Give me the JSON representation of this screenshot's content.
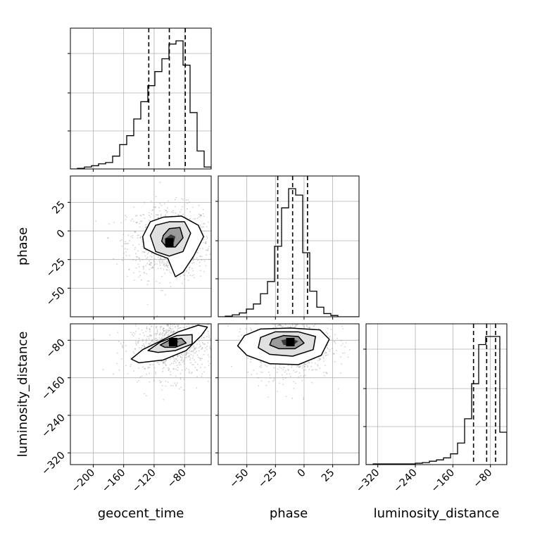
{
  "chart_data": {
    "type": "corner",
    "parameters": [
      "geocent_time",
      "phase",
      "luminosity_distance"
    ],
    "ranges": {
      "geocent_time": [
        -230,
        -45
      ],
      "phase": [
        -75,
        48
      ],
      "luminosity_distance": [
        -345,
        -45
      ]
    },
    "ticks": {
      "geocent_time": [
        -200,
        -160,
        -120,
        -80
      ],
      "phase": [
        -50,
        -25,
        0,
        25
      ],
      "luminosity_distance": [
        -320,
        -240,
        -160,
        -80
      ]
    },
    "tick_labels": {
      "geocent_time": [
        "−200",
        "−160",
        "−120",
        "−80"
      ],
      "phase": [
        "−50",
        "−25",
        "0",
        "25"
      ],
      "luminosity_distance": [
        "−320",
        "−240",
        "−160",
        "−80"
      ]
    },
    "grid": true,
    "histograms": {
      "geocent_time": {
        "bin_edges": [
          -230,
          -220.75,
          -211.5,
          -202.25,
          -193,
          -183.75,
          -174.5,
          -165.25,
          -156,
          -146.75,
          -137.5,
          -128.25,
          -119,
          -109.75,
          -100.5,
          -91.25,
          -82,
          -72.75,
          -63.5,
          -54.25,
          -45
        ],
        "counts": [
          0,
          1,
          3,
          5,
          8,
          10,
          20,
          38,
          52,
          78,
          105,
          130,
          152,
          172,
          195,
          200,
          162,
          88,
          28,
          3
        ],
        "quantiles": [
          -127,
          -100,
          -79
        ]
      },
      "phase": {
        "bin_edges": [
          -75,
          -68.85,
          -62.7,
          -56.55,
          -50.4,
          -44.25,
          -38.1,
          -31.95,
          -25.8,
          -19.65,
          -13.5,
          -7.35,
          -1.2,
          4.95,
          11.1,
          17.25,
          23.4,
          29.55,
          35.7,
          41.85,
          48
        ],
        "counts": [
          0,
          1,
          3,
          6,
          12,
          20,
          36,
          55,
          110,
          170,
          200,
          190,
          100,
          40,
          15,
          5,
          2,
          0,
          0,
          0
        ],
        "quantiles": [
          -23,
          -10,
          3
        ]
      },
      "luminosity_distance": {
        "bin_edges": [
          -345,
          -330,
          -315,
          -300,
          -285,
          -270,
          -255,
          -240,
          -225,
          -210,
          -195,
          -180,
          -165,
          -150,
          -135,
          -120,
          -105,
          -90,
          -75,
          -60,
          -45
        ],
        "counts": [
          0,
          1,
          1,
          1,
          1,
          1,
          1,
          2,
          3,
          5,
          7,
          10,
          16,
          32,
          68,
          120,
          178,
          190,
          190,
          48
        ],
        "quantiles": [
          -116,
          -88,
          -69
        ]
      }
    },
    "joint_2d": [
      {
        "x": "geocent_time",
        "y": "phase",
        "center": [
          -100,
          -10
        ],
        "contours": [
          [
            [
              -135,
              -5
            ],
            [
              -125,
              8
            ],
            [
              -108,
              12
            ],
            [
              -84,
              13
            ],
            [
              -62,
              5
            ],
            [
              -55,
              -5
            ],
            [
              -68,
              -22
            ],
            [
              -82,
              -36
            ],
            [
              -92,
              -40
            ],
            [
              -102,
              -24
            ],
            [
              -118,
              -20
            ],
            [
              -133,
              -15
            ]
          ],
          [
            [
              -125,
              -4
            ],
            [
              -118,
              5
            ],
            [
              -100,
              8
            ],
            [
              -80,
              8
            ],
            [
              -72,
              -2
            ],
            [
              -82,
              -18
            ],
            [
              -100,
              -22
            ],
            [
              -118,
              -18
            ]
          ],
          [
            [
              -108,
              -4
            ],
            [
              -100,
              2
            ],
            [
              -86,
              3
            ],
            [
              -82,
              -6
            ],
            [
              -92,
              -14
            ],
            [
              -104,
              -14
            ],
            [
              -110,
              -9
            ]
          ],
          [
            [
              -104,
              -6
            ],
            [
              -98,
              -3
            ],
            [
              -92,
              -5
            ],
            [
              -94,
              -10
            ],
            [
              -102,
              -10
            ]
          ]
        ]
      },
      {
        "x": "geocent_time",
        "y": "luminosity_distance",
        "center": [
          -95,
          -84
        ],
        "contours": [
          [
            [
              -150,
              -120
            ],
            [
              -135,
              -100
            ],
            [
              -112,
              -82
            ],
            [
              -88,
              -62
            ],
            [
              -62,
              -48
            ],
            [
              -50,
              -52
            ],
            [
              -58,
              -70
            ],
            [
              -78,
              -102
            ],
            [
              -108,
              -122
            ],
            [
              -140,
              -128
            ]
          ],
          [
            [
              -128,
              -102
            ],
            [
              -112,
              -84
            ],
            [
              -90,
              -70
            ],
            [
              -70,
              -68
            ],
            [
              -70,
              -88
            ],
            [
              -92,
              -102
            ],
            [
              -115,
              -106
            ]
          ],
          [
            [
              -112,
              -90
            ],
            [
              -100,
              -80
            ],
            [
              -84,
              -76
            ],
            [
              -78,
              -86
            ],
            [
              -92,
              -95
            ],
            [
              -106,
              -95
            ]
          ],
          [
            [
              -102,
              -86
            ],
            [
              -96,
              -80
            ],
            [
              -88,
              -82
            ],
            [
              -90,
              -88
            ],
            [
              -98,
              -89
            ]
          ]
        ]
      },
      {
        "x": "phase",
        "y": "luminosity_distance",
        "center": [
          -12,
          -84
        ],
        "contours": [
          [
            [
              -52,
              -70
            ],
            [
              -38,
              -56
            ],
            [
              -12,
              -54
            ],
            [
              14,
              -58
            ],
            [
              22,
              -78
            ],
            [
              15,
              -112
            ],
            [
              -5,
              -132
            ],
            [
              -30,
              -130
            ],
            [
              -50,
              -112
            ],
            [
              -58,
              -92
            ]
          ],
          [
            [
              -38,
              -74
            ],
            [
              -25,
              -62
            ],
            [
              -5,
              -62
            ],
            [
              10,
              -72
            ],
            [
              8,
              -100
            ],
            [
              -10,
              -114
            ],
            [
              -30,
              -110
            ],
            [
              -40,
              -96
            ]
          ],
          [
            [
              -28,
              -78
            ],
            [
              -18,
              -70
            ],
            [
              -5,
              -72
            ],
            [
              0,
              -86
            ],
            [
              -8,
              -98
            ],
            [
              -22,
              -98
            ],
            [
              -30,
              -90
            ]
          ],
          [
            [
              -20,
              -80
            ],
            [
              -12,
              -76
            ],
            [
              -5,
              -82
            ],
            [
              -10,
              -92
            ],
            [
              -18,
              -90
            ]
          ]
        ]
      }
    ]
  },
  "labels": {
    "x": {
      "geocent_time": "geocent_time",
      "phase": "phase",
      "luminosity_distance": "luminosity_distance"
    },
    "y": {
      "phase": "phase",
      "luminosity_distance": "luminosity_distance"
    }
  },
  "colors": {
    "line": "#000000",
    "grid": "#b0b0b0",
    "scatter": "#7a7a7a"
  }
}
